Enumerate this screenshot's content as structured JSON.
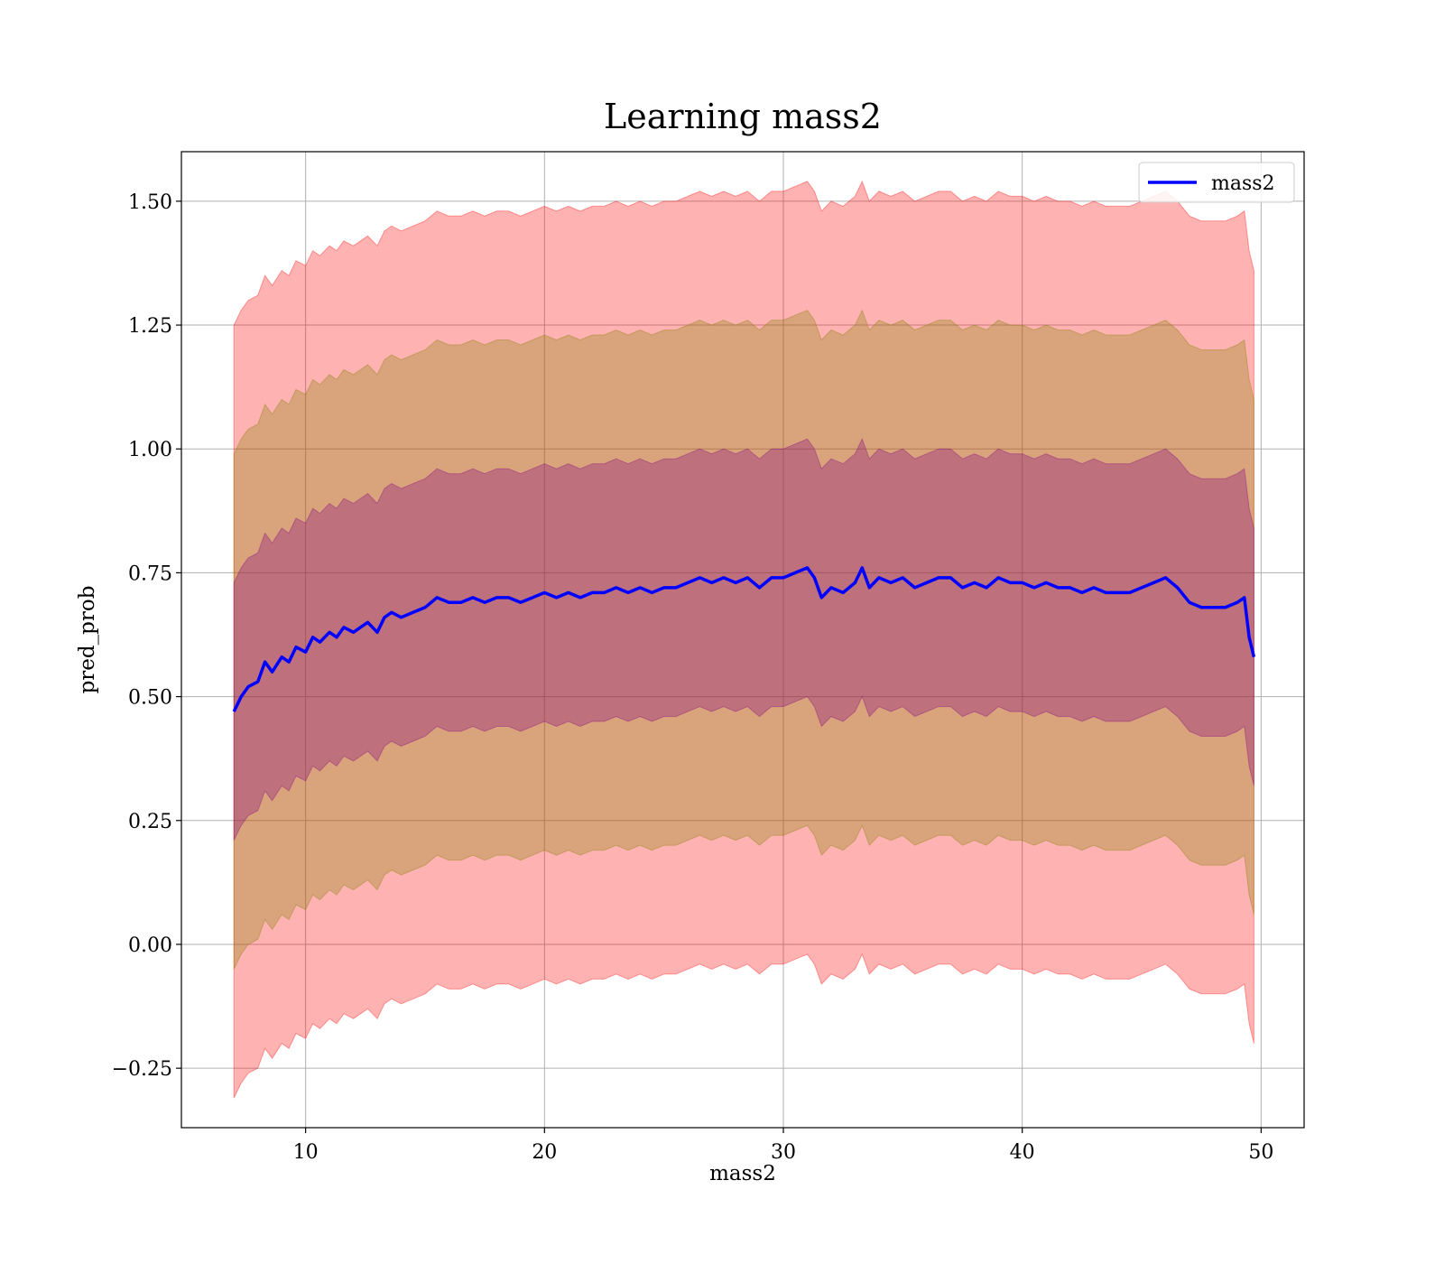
{
  "chart_data": {
    "type": "line",
    "title": "Learning mass2",
    "xlabel": "mass2",
    "ylabel": "pred_prob",
    "xlim": [
      4.8,
      51.8
    ],
    "ylim": [
      -0.37,
      1.6
    ],
    "xticks": [
      10,
      20,
      30,
      40,
      50
    ],
    "xtick_labels": [
      "10",
      "20",
      "30",
      "40",
      "50"
    ],
    "yticks": [
      -0.25,
      0,
      0.25,
      0.5,
      0.75,
      1.0,
      1.25,
      1.5
    ],
    "ytick_labels": [
      "−0.25",
      "0.00",
      "0.25",
      "0.50",
      "0.75",
      "1.00",
      "1.25",
      "1.50"
    ],
    "grid": true,
    "legend": {
      "position": "top-right",
      "entries": [
        "mass2"
      ]
    },
    "colors": {
      "line": "#0000ff",
      "band_3sd": "#ff0000",
      "band_2sd": "#808000",
      "band_1sd": "#800080"
    },
    "band_sd": 0.26,
    "series": [
      {
        "name": "mass2",
        "x": [
          7.0,
          7.3,
          7.6,
          8.0,
          8.3,
          8.6,
          9.0,
          9.3,
          9.6,
          10.0,
          10.3,
          10.6,
          11.0,
          11.3,
          11.6,
          12.0,
          12.3,
          12.6,
          13.0,
          13.3,
          13.6,
          14.0,
          14.5,
          15.0,
          15.5,
          16.0,
          16.5,
          17.0,
          17.5,
          18.0,
          18.5,
          19.0,
          19.5,
          20.0,
          20.5,
          21.0,
          21.5,
          22.0,
          22.5,
          23.0,
          23.5,
          24.0,
          24.5,
          25.0,
          25.5,
          26.0,
          26.5,
          27.0,
          27.5,
          28.0,
          28.5,
          29.0,
          29.5,
          30.0,
          30.5,
          31.0,
          31.3,
          31.6,
          32.0,
          32.5,
          33.0,
          33.3,
          33.6,
          34.0,
          34.5,
          35.0,
          35.5,
          36.0,
          36.5,
          37.0,
          37.5,
          38.0,
          38.5,
          39.0,
          39.5,
          40.0,
          40.5,
          41.0,
          41.5,
          42.0,
          42.5,
          43.0,
          43.5,
          44.0,
          44.5,
          45.0,
          45.5,
          46.0,
          46.5,
          47.0,
          47.5,
          48.0,
          48.5,
          49.0,
          49.3,
          49.5,
          49.7
        ],
        "y": [
          0.47,
          0.5,
          0.52,
          0.53,
          0.57,
          0.55,
          0.58,
          0.57,
          0.6,
          0.59,
          0.62,
          0.61,
          0.63,
          0.62,
          0.64,
          0.63,
          0.64,
          0.65,
          0.63,
          0.66,
          0.67,
          0.66,
          0.67,
          0.68,
          0.7,
          0.69,
          0.69,
          0.7,
          0.69,
          0.7,
          0.7,
          0.69,
          0.7,
          0.71,
          0.7,
          0.71,
          0.7,
          0.71,
          0.71,
          0.72,
          0.71,
          0.72,
          0.71,
          0.72,
          0.72,
          0.73,
          0.74,
          0.73,
          0.74,
          0.73,
          0.74,
          0.72,
          0.74,
          0.74,
          0.75,
          0.76,
          0.74,
          0.7,
          0.72,
          0.71,
          0.73,
          0.76,
          0.72,
          0.74,
          0.73,
          0.74,
          0.72,
          0.73,
          0.74,
          0.74,
          0.72,
          0.73,
          0.72,
          0.74,
          0.73,
          0.73,
          0.72,
          0.73,
          0.72,
          0.72,
          0.71,
          0.72,
          0.71,
          0.71,
          0.71,
          0.72,
          0.73,
          0.74,
          0.72,
          0.69,
          0.68,
          0.68,
          0.68,
          0.69,
          0.7,
          0.62,
          0.58
        ]
      }
    ]
  }
}
